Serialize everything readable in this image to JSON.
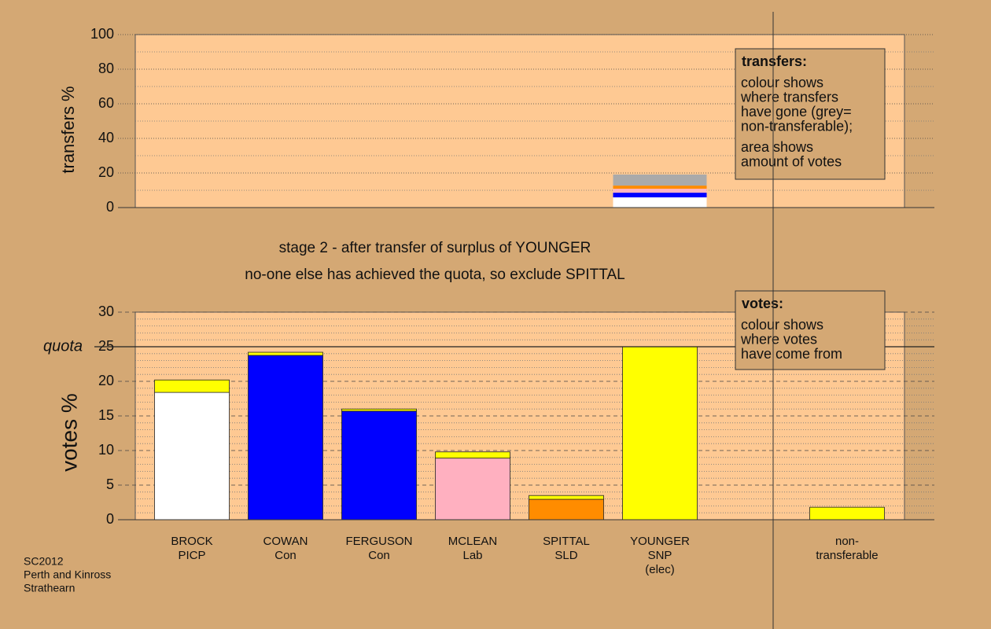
{
  "chart_data": [
    {
      "type": "bar",
      "stacked": true,
      "ylabel": "transfers %",
      "ylim": [
        0,
        100
      ],
      "yticks": [
        0,
        20,
        40,
        60,
        80,
        100
      ],
      "minor_yticks": [
        10,
        30,
        50,
        70,
        90
      ],
      "series": [
        {
          "color": "#ffffff",
          "values": [
            null,
            null,
            null,
            null,
            null,
            5.9,
            null,
            null
          ]
        },
        {
          "color": "#0000ff",
          "values": [
            null,
            null,
            null,
            null,
            null,
            2.7,
            null,
            null
          ]
        },
        {
          "color": "#ffb6c1",
          "values": [
            null,
            null,
            null,
            null,
            null,
            2.3,
            null,
            null
          ]
        },
        {
          "color": "#ff8c00",
          "values": [
            null,
            null,
            null,
            null,
            null,
            1.8,
            null,
            null
          ]
        },
        {
          "color": "#aaaaaa",
          "values": [
            null,
            null,
            null,
            null,
            null,
            6.4,
            null,
            null
          ]
        }
      ],
      "note": {
        "title": "transfers:",
        "paragraphs": [
          [
            "colour shows",
            "where transfers",
            "have gone (grey=",
            "non-transferable);"
          ],
          [
            "area shows",
            "amount of votes"
          ]
        ]
      }
    },
    {
      "type": "bar",
      "stacked": true,
      "title": [
        "stage 2 - after transfer of surplus of YOUNGER",
        "no-one else has achieved the quota, so exclude SPITTAL"
      ],
      "ylabel": "votes %",
      "ylim": [
        0,
        30
      ],
      "yticks": [
        0,
        5,
        10,
        15,
        20,
        25,
        30
      ],
      "minor_yticks": [
        1,
        2,
        3,
        4,
        6,
        7,
        8,
        9,
        11,
        12,
        13,
        14,
        16,
        17,
        18,
        19,
        21,
        22,
        23,
        24,
        26,
        27,
        28,
        29
      ],
      "quota": {
        "label": "quota",
        "value": 25
      },
      "categories": [
        [
          "BROCK",
          "PICP"
        ],
        [
          "COWAN",
          "Con"
        ],
        [
          "FERGUSON",
          "Con"
        ],
        [
          "MCLEAN",
          "Lab"
        ],
        [
          "SPITTAL",
          "SLD"
        ],
        [
          "YOUNGER",
          "SNP",
          "(elec)"
        ],
        null,
        [
          "non-",
          "transferable"
        ]
      ],
      "series": [
        {
          "colors": [
            "#ffffff",
            "#0000ff",
            "#0000ff",
            "#ffb0c0",
            "#ff8c00",
            "#ffff00",
            null,
            null
          ],
          "values": [
            18.4,
            23.75,
            15.7,
            8.9,
            2.95,
            25,
            null,
            null
          ]
        },
        {
          "color": "#ffff00",
          "values": [
            1.8,
            0.45,
            0.3,
            0.9,
            0.55,
            null,
            null,
            1.8
          ]
        }
      ],
      "note": {
        "title": "votes:",
        "paragraphs": [
          [
            "colour shows",
            "where votes",
            "have come from"
          ]
        ]
      }
    }
  ],
  "footer": [
    "SC2012",
    "Perth and Kinross",
    "Strathearn"
  ]
}
